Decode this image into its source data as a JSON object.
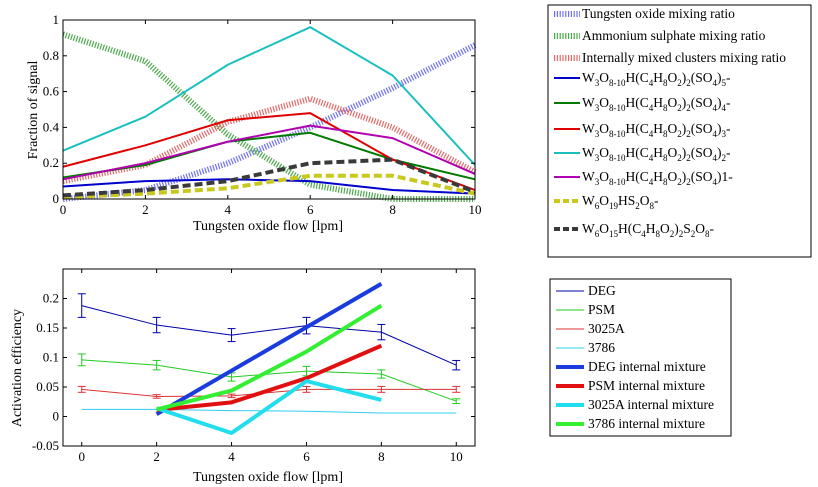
{
  "chart_data": [
    {
      "type": "line",
      "xlabel": "Tungsten oxide flow [lpm]",
      "ylabel": "Fraction of signal",
      "xlim": [
        0,
        10
      ],
      "ylim": [
        0,
        1
      ],
      "xticks": [
        "0",
        "2",
        "4",
        "6",
        "8",
        "10"
      ],
      "yticks": [
        "0",
        "0.2",
        "0.4",
        "0.6",
        "0.8",
        "1"
      ],
      "legend_position": "outside-right",
      "series": [
        {
          "name": "Tungsten oxide mixing ratio",
          "color": "#7070ee",
          "style": "hatched-thick",
          "x": [
            0,
            2,
            4,
            6,
            8,
            10
          ],
          "y": [
            0.0,
            0.05,
            0.2,
            0.4,
            0.62,
            0.86
          ]
        },
        {
          "name": "Ammonium sulphate mixing ratio",
          "color": "#4ca84c",
          "style": "hatched-thick",
          "x": [
            0,
            2,
            4,
            6,
            8,
            10
          ],
          "y": [
            0.92,
            0.77,
            0.36,
            0.08,
            0.0,
            0.0
          ]
        },
        {
          "name": "Internally mixed clusters mixing ratio",
          "color": "#e06a6a",
          "style": "hatched-thick",
          "x": [
            0,
            2,
            4,
            6,
            8,
            10
          ],
          "y": [
            0.1,
            0.19,
            0.43,
            0.56,
            0.4,
            0.15
          ]
        },
        {
          "name": "W3O8-10H(C4H8O2)2(SO4)5-",
          "label_main": "W",
          "label_subs": [
            [
              "3",
              "sub"
            ],
            [
              "O",
              ""
            ],
            [
              "8-10",
              "sub"
            ],
            [
              "H(C",
              ""
            ],
            [
              "4",
              "sub"
            ],
            [
              "H",
              ""
            ],
            [
              "8",
              "sub"
            ],
            [
              "O",
              ""
            ],
            [
              "2",
              "sub"
            ],
            [
              ")",
              ""
            ],
            [
              "2",
              "sub"
            ],
            [
              "(SO",
              ""
            ],
            [
              "4",
              "sub"
            ],
            [
              ")",
              ""
            ],
            [
              "5",
              "sub"
            ],
            [
              "-",
              ""
            ]
          ],
          "color": "#0000cc",
          "style": "solid",
          "x": [
            0,
            2,
            4,
            6,
            8,
            10
          ],
          "y": [
            0.07,
            0.1,
            0.11,
            0.1,
            0.05,
            0.03
          ]
        },
        {
          "name": "W3O8-10H(C4H8O2)2(SO4)4-",
          "label_main": "W",
          "label_subs": [
            [
              "3",
              "sub"
            ],
            [
              "O",
              ""
            ],
            [
              "8-10",
              "sub"
            ],
            [
              "H(C",
              ""
            ],
            [
              "4",
              "sub"
            ],
            [
              "H",
              ""
            ],
            [
              "8",
              "sub"
            ],
            [
              "O",
              ""
            ],
            [
              "2",
              "sub"
            ],
            [
              ")",
              ""
            ],
            [
              "2",
              "sub"
            ],
            [
              "(SO",
              ""
            ],
            [
              "4",
              "sub"
            ],
            [
              ")",
              ""
            ],
            [
              "4",
              "sub"
            ],
            [
              "-",
              ""
            ]
          ],
          "color": "#007a00",
          "style": "solid",
          "x": [
            0,
            2,
            4,
            6,
            8,
            10
          ],
          "y": [
            0.12,
            0.19,
            0.32,
            0.37,
            0.22,
            0.11
          ]
        },
        {
          "name": "W3O8-10H(C4H8O2)2(SO4)3-",
          "label_main": "W",
          "label_subs": [
            [
              "3",
              "sub"
            ],
            [
              "O",
              ""
            ],
            [
              "8-10",
              "sub"
            ],
            [
              "H(C",
              ""
            ],
            [
              "4",
              "sub"
            ],
            [
              "H",
              ""
            ],
            [
              "8",
              "sub"
            ],
            [
              "O",
              ""
            ],
            [
              "2",
              "sub"
            ],
            [
              ")",
              ""
            ],
            [
              "2",
              "sub"
            ],
            [
              "(SO",
              ""
            ],
            [
              "4",
              "sub"
            ],
            [
              ")",
              ""
            ],
            [
              "3",
              "sub"
            ],
            [
              "-",
              ""
            ]
          ],
          "color": "#e00000",
          "style": "solid",
          "x": [
            0,
            2,
            4,
            6,
            8,
            10
          ],
          "y": [
            0.18,
            0.3,
            0.44,
            0.48,
            0.22,
            0.05
          ]
        },
        {
          "name": "W3O8-10H(C4H8O2)2(SO4)2-",
          "label_main": "W",
          "label_subs": [
            [
              "3",
              "sub"
            ],
            [
              "O",
              ""
            ],
            [
              "8-10",
              "sub"
            ],
            [
              "H(C",
              ""
            ],
            [
              "4",
              "sub"
            ],
            [
              "H",
              ""
            ],
            [
              "8",
              "sub"
            ],
            [
              "O",
              ""
            ],
            [
              "2",
              "sub"
            ],
            [
              ")",
              ""
            ],
            [
              "2",
              "sub"
            ],
            [
              "(SO",
              ""
            ],
            [
              "4",
              "sub"
            ],
            [
              ")",
              ""
            ],
            [
              "2",
              "sub"
            ],
            [
              "-",
              ""
            ]
          ],
          "color": "#1bbfbf",
          "style": "solid",
          "x": [
            0,
            2,
            4,
            6,
            8,
            10
          ],
          "y": [
            0.27,
            0.46,
            0.75,
            0.96,
            0.69,
            0.19
          ]
        },
        {
          "name": "W3O8-10H(C4H8O2)2(SO4)1-",
          "label_main": "W",
          "label_subs": [
            [
              "3",
              "sub"
            ],
            [
              "O",
              ""
            ],
            [
              "8-10",
              "sub"
            ],
            [
              "H(C",
              ""
            ],
            [
              "4",
              "sub"
            ],
            [
              "H",
              ""
            ],
            [
              "8",
              "sub"
            ],
            [
              "O",
              ""
            ],
            [
              "2",
              "sub"
            ],
            [
              ")",
              ""
            ],
            [
              "2",
              "sub"
            ],
            [
              "(SO",
              ""
            ],
            [
              "4",
              "sub"
            ],
            [
              ")1-",
              ""
            ]
          ],
          "color": "#b000b0",
          "style": "solid",
          "x": [
            0,
            2,
            4,
            6,
            8,
            10
          ],
          "y": [
            0.11,
            0.2,
            0.32,
            0.41,
            0.34,
            0.14
          ]
        },
        {
          "name": "W6O19HS2O8-",
          "label_main": "W",
          "label_subs": [
            [
              "6",
              "sub"
            ],
            [
              "O",
              ""
            ],
            [
              "19",
              "sub"
            ],
            [
              "HS",
              ""
            ],
            [
              "2",
              "sub"
            ],
            [
              "O",
              ""
            ],
            [
              "8",
              "sub"
            ],
            [
              "-",
              ""
            ]
          ],
          "color": "#c8c820",
          "style": "dashed-thick",
          "x": [
            0,
            2,
            4,
            6,
            8,
            10
          ],
          "y": [
            0.01,
            0.03,
            0.06,
            0.13,
            0.13,
            0.03
          ]
        },
        {
          "name": "W6O15H(C4H8O2)2S2O8-",
          "label_main": "W",
          "label_subs": [
            [
              "6",
              "sub"
            ],
            [
              "O",
              ""
            ],
            [
              "15",
              "sub"
            ],
            [
              "H(C",
              ""
            ],
            [
              "4",
              "sub"
            ],
            [
              "H",
              ""
            ],
            [
              "8",
              "sub"
            ],
            [
              "O",
              ""
            ],
            [
              "2",
              "sub"
            ],
            [
              ")",
              ""
            ],
            [
              "2",
              "sub"
            ],
            [
              "S",
              ""
            ],
            [
              "2",
              "sub"
            ],
            [
              "O",
              ""
            ],
            [
              "8",
              "sub"
            ],
            [
              "-",
              ""
            ]
          ],
          "color": "#3a3a3a",
          "style": "dashed-thick",
          "x": [
            0,
            2,
            4,
            6,
            8,
            10
          ],
          "y": [
            0.02,
            0.05,
            0.1,
            0.2,
            0.22,
            0.04
          ]
        }
      ]
    },
    {
      "type": "line",
      "xlabel": "Tungsten oxide flow [lpm]",
      "ylabel": "Activation efficiency",
      "xlim": [
        -0.5,
        10.5
      ],
      "ylim": [
        -0.05,
        0.25
      ],
      "xticks": [
        "0",
        "2",
        "4",
        "6",
        "8",
        "10"
      ],
      "yticks": [
        "-0.05",
        "0",
        "0.05",
        "0.1",
        "0.15",
        "0.2"
      ],
      "legend_position": "outside-right",
      "series": [
        {
          "name": "DEG",
          "color": "#0000aa",
          "width": 1,
          "x": [
            0,
            2,
            4,
            6,
            8,
            10
          ],
          "y": [
            0.188,
            0.155,
            0.138,
            0.154,
            0.143,
            0.087
          ],
          "err": [
            0.02,
            0.013,
            0.011,
            0.014,
            0.013,
            0.008
          ]
        },
        {
          "name": "PSM",
          "color": "#22cc22",
          "width": 1,
          "x": [
            0,
            2,
            4,
            6,
            8,
            10
          ],
          "y": [
            0.096,
            0.087,
            0.067,
            0.077,
            0.072,
            0.026
          ],
          "err": [
            0.01,
            0.008,
            0.007,
            0.008,
            0.007,
            0.004
          ]
        },
        {
          "name": "3025A",
          "color": "#dd3333",
          "width": 1,
          "x": [
            0,
            2,
            4,
            6,
            8,
            10
          ],
          "y": [
            0.046,
            0.034,
            0.035,
            0.046,
            0.046,
            0.046
          ],
          "err": [
            0.005,
            0.003,
            0.003,
            0.005,
            0.005,
            0.005
          ]
        },
        {
          "name": "3786",
          "color": "#33ccee",
          "width": 1,
          "x": [
            0,
            2,
            4,
            6,
            8,
            10
          ],
          "y": [
            0.012,
            0.012,
            0.01,
            0.009,
            0.006,
            0.006
          ]
        },
        {
          "name": "DEG internal mixture",
          "color": "#1a3cdd",
          "width": 4,
          "x": [
            2,
            8
          ],
          "y": [
            0.004,
            0.225
          ]
        },
        {
          "name": "PSM internal mixture",
          "color": "#e01010",
          "width": 4,
          "x": [
            2,
            4,
            6,
            8
          ],
          "y": [
            0.011,
            0.024,
            0.065,
            0.12
          ]
        },
        {
          "name": "3025A internal mixture",
          "color": "#22ddee",
          "width": 4,
          "x": [
            2,
            4,
            6,
            8
          ],
          "y": [
            0.014,
            -0.028,
            0.06,
            0.028
          ]
        },
        {
          "name": "3786 internal mixture",
          "color": "#33ee33",
          "width": 4,
          "x": [
            2,
            4,
            6,
            8
          ],
          "y": [
            0.012,
            0.044,
            0.11,
            0.188
          ]
        }
      ]
    }
  ]
}
